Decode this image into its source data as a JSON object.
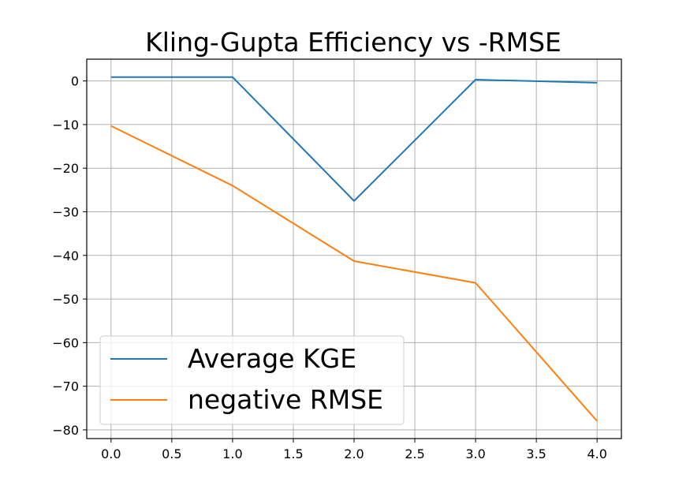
{
  "chart_data": {
    "type": "line",
    "title": "Kling-Gupta Efficiency vs -RMSE",
    "xlabel": "",
    "ylabel": "",
    "xlim": [
      -0.2,
      4.2
    ],
    "ylim": [
      -82,
      5
    ],
    "xticks": [
      0.0,
      0.5,
      1.0,
      1.5,
      2.0,
      2.5,
      3.0,
      3.5,
      4.0
    ],
    "xtick_labels": [
      "0.0",
      "0.5",
      "1.0",
      "1.5",
      "2.0",
      "2.5",
      "3.0",
      "3.5",
      "4.0"
    ],
    "yticks": [
      0,
      -10,
      -20,
      -30,
      -40,
      -50,
      -60,
      -70,
      -80
    ],
    "ytick_labels": [
      "0",
      "−10",
      "−20",
      "−30",
      "−40",
      "−50",
      "−60",
      "−70",
      "−80"
    ],
    "grid": true,
    "legend_position": "lower-left",
    "x": [
      0,
      1,
      2,
      3,
      4
    ],
    "series": [
      {
        "name": "Average KGE",
        "color": "#1f77b4",
        "values": [
          0.9,
          0.9,
          -27.5,
          0.3,
          -0.4
        ]
      },
      {
        "name": "negative RMSE",
        "color": "#ff7f0e",
        "values": [
          -10.3,
          -24.0,
          -41.3,
          -46.3,
          -78.0
        ]
      }
    ]
  }
}
